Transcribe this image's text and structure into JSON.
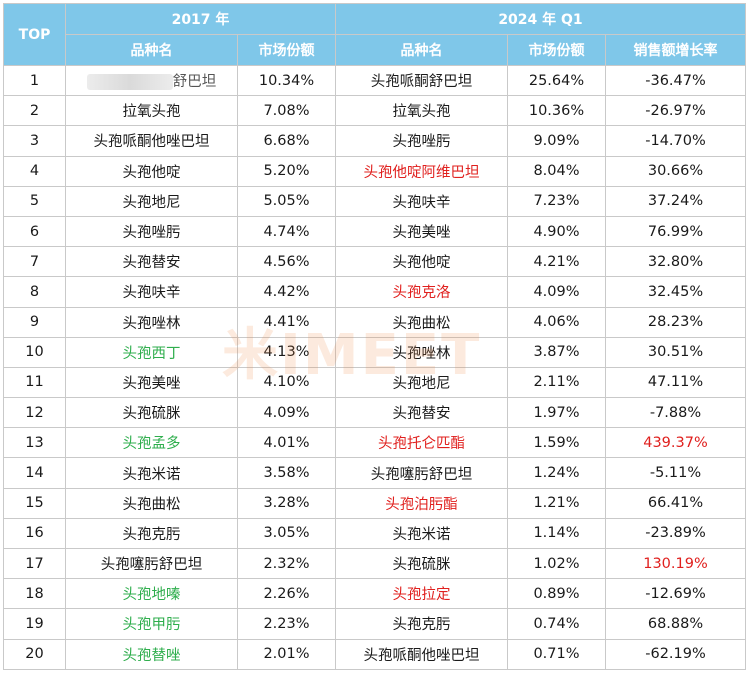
{
  "header": {
    "top": "TOP",
    "year_2017": "2017 年",
    "year_2024": "2024 年 Q1",
    "col_name": "品种名",
    "col_share": "市场份额",
    "col_growth": "销售额增长率"
  },
  "watermark": "米IMEET",
  "colors": {
    "header_bg": "#7fc7e9",
    "red": "#e0201e",
    "green": "#2fae4d"
  },
  "rows": [
    {
      "rank": "1",
      "name2017": "舒巴坦",
      "share2017": "10.34%",
      "name2024": "头孢哌酮舒巴坦",
      "share2024": "25.64%",
      "growth": "-36.47%",
      "c17": "blur",
      "c24": "",
      "cg": ""
    },
    {
      "rank": "2",
      "name2017": "拉氧头孢",
      "share2017": "7.08%",
      "name2024": "拉氧头孢",
      "share2024": "10.36%",
      "growth": "-26.97%",
      "c17": "",
      "c24": "",
      "cg": ""
    },
    {
      "rank": "3",
      "name2017": "头孢哌酮他唑巴坦",
      "share2017": "6.68%",
      "name2024": "头孢唑肟",
      "share2024": "9.09%",
      "growth": "-14.70%",
      "c17": "",
      "c24": "",
      "cg": ""
    },
    {
      "rank": "4",
      "name2017": "头孢他啶",
      "share2017": "5.20%",
      "name2024": "头孢他啶阿维巴坦",
      "share2024": "8.04%",
      "growth": "30.66%",
      "c17": "",
      "c24": "red",
      "cg": ""
    },
    {
      "rank": "5",
      "name2017": "头孢地尼",
      "share2017": "5.05%",
      "name2024": "头孢呋辛",
      "share2024": "7.23%",
      "growth": "37.24%",
      "c17": "",
      "c24": "",
      "cg": ""
    },
    {
      "rank": "6",
      "name2017": "头孢唑肟",
      "share2017": "4.74%",
      "name2024": "头孢美唑",
      "share2024": "4.90%",
      "growth": "76.99%",
      "c17": "",
      "c24": "",
      "cg": ""
    },
    {
      "rank": "7",
      "name2017": "头孢替安",
      "share2017": "4.56%",
      "name2024": "头孢他啶",
      "share2024": "4.21%",
      "growth": "32.80%",
      "c17": "",
      "c24": "",
      "cg": ""
    },
    {
      "rank": "8",
      "name2017": "头孢呋辛",
      "share2017": "4.42%",
      "name2024": "头孢克洛",
      "share2024": "4.09%",
      "growth": "32.45%",
      "c17": "",
      "c24": "red",
      "cg": ""
    },
    {
      "rank": "9",
      "name2017": "头孢唑林",
      "share2017": "4.41%",
      "name2024": "头孢曲松",
      "share2024": "4.06%",
      "growth": "28.23%",
      "c17": "",
      "c24": "",
      "cg": ""
    },
    {
      "rank": "10",
      "name2017": "头孢西丁",
      "share2017": "4.13%",
      "name2024": "头孢唑林",
      "share2024": "3.87%",
      "growth": "30.51%",
      "c17": "green",
      "c24": "",
      "cg": ""
    },
    {
      "rank": "11",
      "name2017": "头孢美唑",
      "share2017": "4.10%",
      "name2024": "头孢地尼",
      "share2024": "2.11%",
      "growth": "47.11%",
      "c17": "",
      "c24": "",
      "cg": ""
    },
    {
      "rank": "12",
      "name2017": "头孢硫脒",
      "share2017": "4.09%",
      "name2024": "头孢替安",
      "share2024": "1.97%",
      "growth": "-7.88%",
      "c17": "",
      "c24": "",
      "cg": ""
    },
    {
      "rank": "13",
      "name2017": "头孢孟多",
      "share2017": "4.01%",
      "name2024": "头孢托仑匹酯",
      "share2024": "1.59%",
      "growth": "439.37%",
      "c17": "green",
      "c24": "red",
      "cg": "red"
    },
    {
      "rank": "14",
      "name2017": "头孢米诺",
      "share2017": "3.58%",
      "name2024": "头孢噻肟舒巴坦",
      "share2024": "1.24%",
      "growth": "-5.11%",
      "c17": "",
      "c24": "",
      "cg": ""
    },
    {
      "rank": "15",
      "name2017": "头孢曲松",
      "share2017": "3.28%",
      "name2024": "头孢泊肟酯",
      "share2024": "1.21%",
      "growth": "66.41%",
      "c17": "",
      "c24": "red",
      "cg": ""
    },
    {
      "rank": "16",
      "name2017": "头孢克肟",
      "share2017": "3.05%",
      "name2024": "头孢米诺",
      "share2024": "1.14%",
      "growth": "-23.89%",
      "c17": "",
      "c24": "",
      "cg": ""
    },
    {
      "rank": "17",
      "name2017": "头孢噻肟舒巴坦",
      "share2017": "2.32%",
      "name2024": "头孢硫脒",
      "share2024": "1.02%",
      "growth": "130.19%",
      "c17": "",
      "c24": "",
      "cg": "red"
    },
    {
      "rank": "18",
      "name2017": "头孢地嗪",
      "share2017": "2.26%",
      "name2024": "头孢拉定",
      "share2024": "0.89%",
      "growth": "-12.69%",
      "c17": "green",
      "c24": "red",
      "cg": ""
    },
    {
      "rank": "19",
      "name2017": "头孢甲肟",
      "share2017": "2.23%",
      "name2024": "头孢克肟",
      "share2024": "0.74%",
      "growth": "68.88%",
      "c17": "green",
      "c24": "",
      "cg": ""
    },
    {
      "rank": "20",
      "name2017": "头孢替唑",
      "share2017": "2.01%",
      "name2024": "头孢哌酮他唑巴坦",
      "share2024": "0.71%",
      "growth": "-62.19%",
      "c17": "green",
      "c24": "",
      "cg": ""
    }
  ]
}
